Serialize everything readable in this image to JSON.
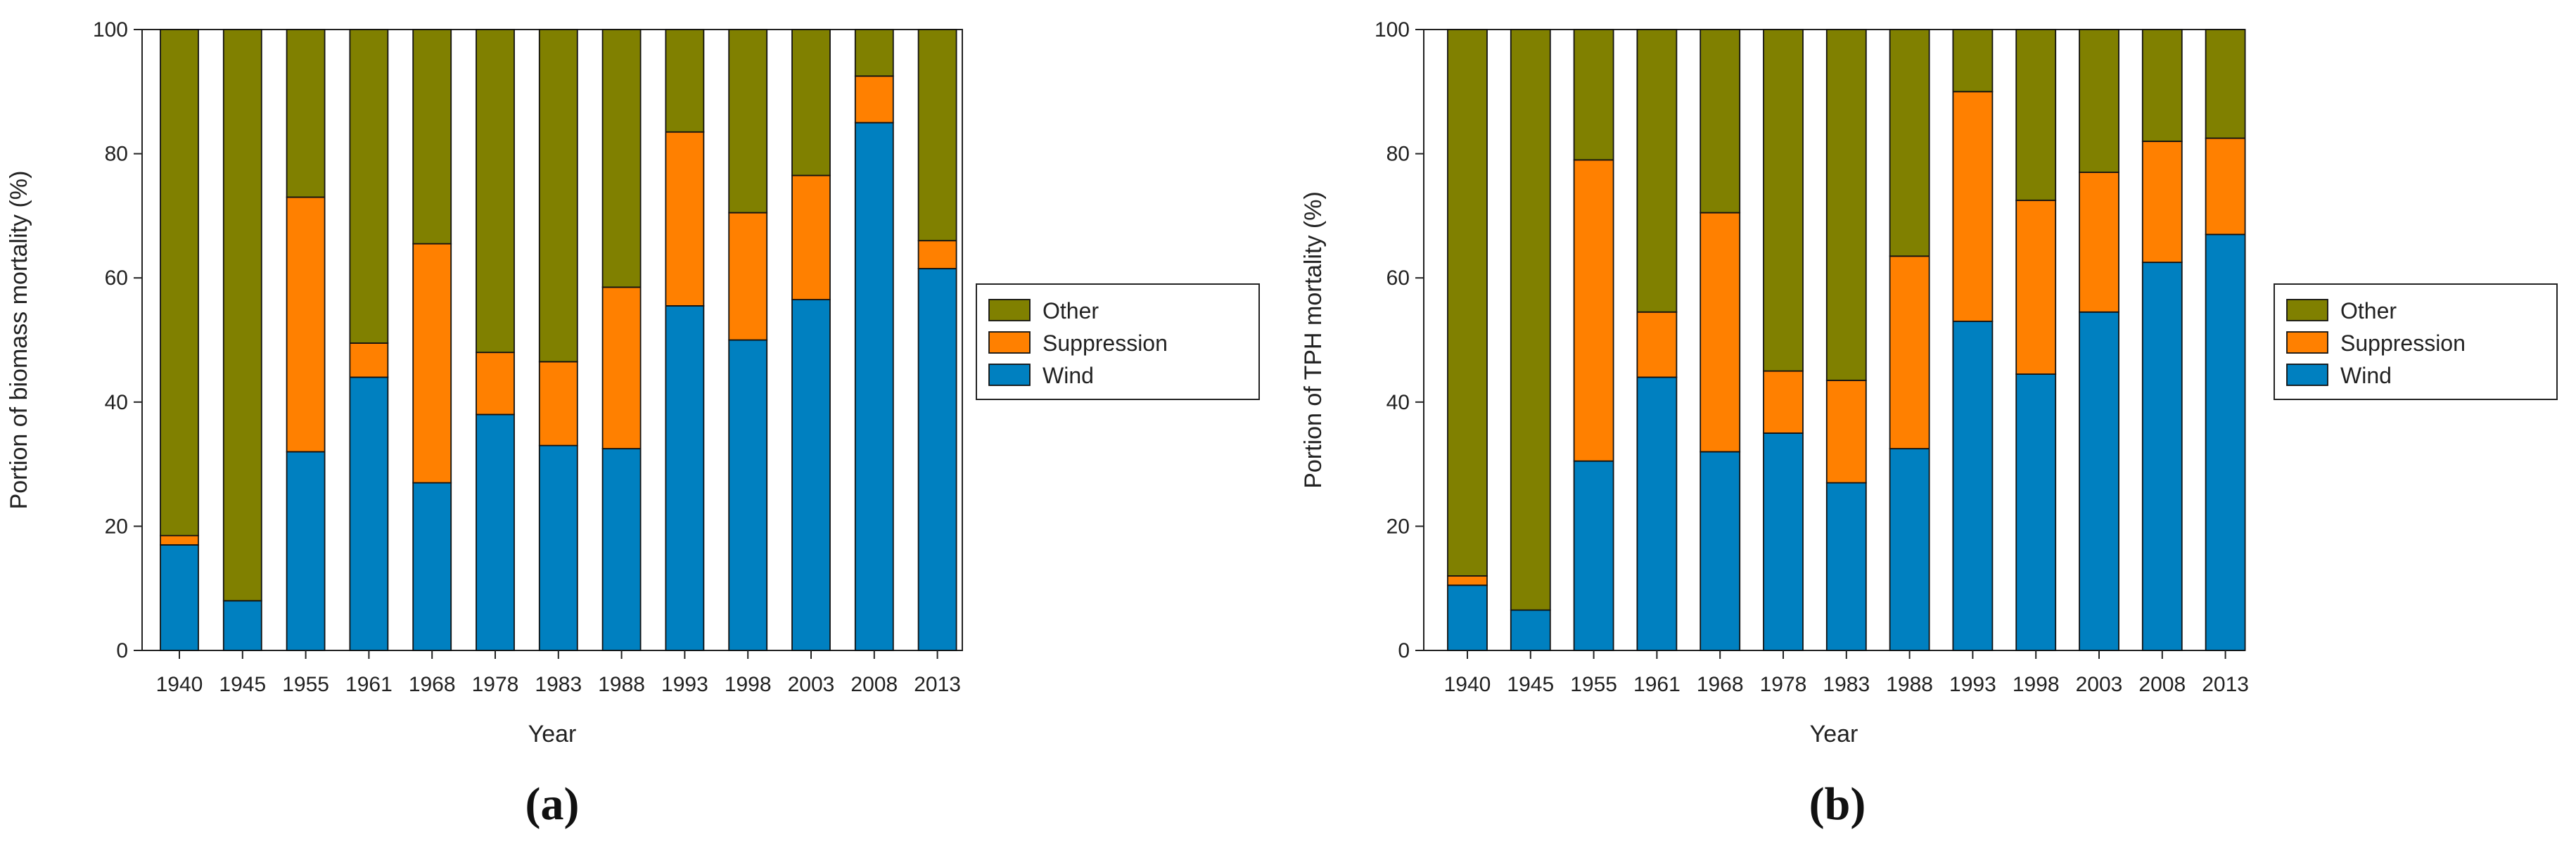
{
  "colors": {
    "Other": "#808000",
    "Suppression": "#ff8000",
    "Wind": "#0080c0"
  },
  "chart_data": [
    {
      "type": "bar",
      "stacked": true,
      "panel_label": "(a)",
      "xlabel": "Year",
      "ylabel": "Portion of biomass mortality (%)",
      "ylim": [
        0,
        100
      ],
      "yticks": [
        0,
        20,
        40,
        60,
        80,
        100
      ],
      "categories": [
        "1940",
        "1945",
        "1955",
        "1961",
        "1968",
        "1978",
        "1983",
        "1988",
        "1993",
        "1998",
        "2003",
        "2008",
        "2013"
      ],
      "legend": [
        "Other",
        "Suppression",
        "Wind"
      ],
      "legend_position": "right",
      "series": [
        {
          "name": "Wind",
          "values": [
            17,
            8,
            32,
            44,
            27,
            38,
            33,
            32.5,
            55.5,
            50,
            56.5,
            85,
            61.5
          ]
        },
        {
          "name": "Suppression",
          "values": [
            1.5,
            0,
            41,
            5.5,
            38.5,
            10,
            13.5,
            26,
            28,
            20.5,
            20,
            7.5,
            4.5
          ]
        },
        {
          "name": "Other",
          "values": [
            81.5,
            92,
            27,
            50.5,
            34.5,
            52,
            53.5,
            41.5,
            16.5,
            29.5,
            23.5,
            7.5,
            34
          ]
        }
      ]
    },
    {
      "type": "bar",
      "stacked": true,
      "panel_label": "(b)",
      "xlabel": "Year",
      "ylabel": "Portion of TPH mortality (%)",
      "ylim": [
        0,
        100
      ],
      "yticks": [
        0,
        20,
        40,
        60,
        80,
        100
      ],
      "categories": [
        "1940",
        "1945",
        "1955",
        "1961",
        "1968",
        "1978",
        "1983",
        "1988",
        "1993",
        "1998",
        "2003",
        "2008",
        "2013"
      ],
      "legend": [
        "Other",
        "Suppression",
        "Wind"
      ],
      "legend_position": "right",
      "series": [
        {
          "name": "Wind",
          "values": [
            10.5,
            6.5,
            30.5,
            44,
            32,
            35,
            27,
            32.5,
            53,
            44.5,
            54.5,
            62.5,
            67
          ]
        },
        {
          "name": "Suppression",
          "values": [
            1.5,
            0,
            48.5,
            10.5,
            38.5,
            10,
            16.5,
            31,
            37,
            28,
            22.5,
            19.5,
            15.5
          ]
        },
        {
          "name": "Other",
          "values": [
            88,
            93.5,
            21,
            45.5,
            29.5,
            55,
            56.5,
            36.5,
            10,
            27.5,
            23,
            18,
            17.5
          ]
        }
      ]
    }
  ]
}
